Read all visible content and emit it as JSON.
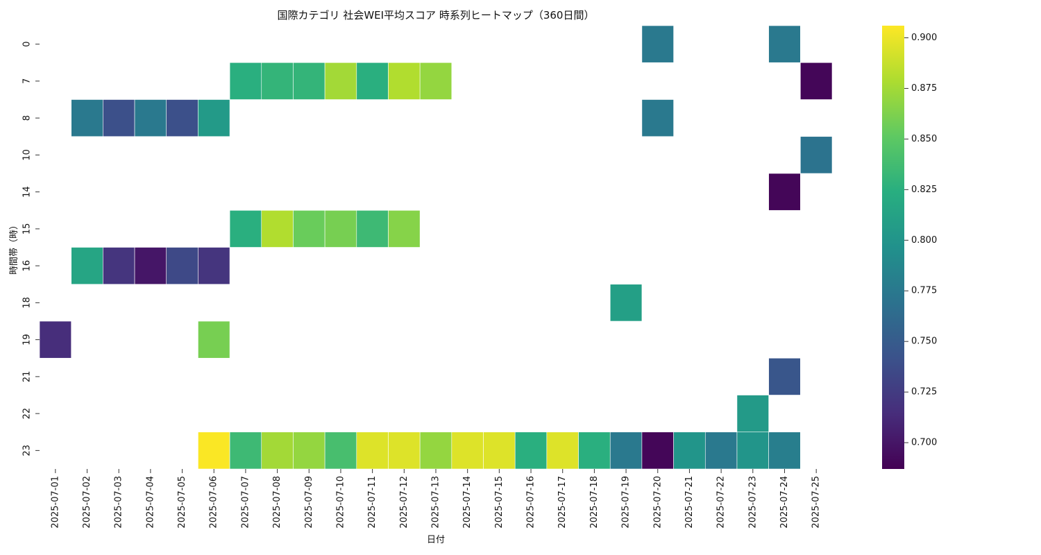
{
  "chart_data": {
    "type": "heatmap",
    "title": "国際カテゴリ 社会WEI平均スコア 時系列ヒートマップ（360日間）",
    "xlabel": "日付",
    "ylabel": "時間帯（時）",
    "x_categories": [
      "2025-07-01",
      "2025-07-02",
      "2025-07-03",
      "2025-07-04",
      "2025-07-05",
      "2025-07-06",
      "2025-07-07",
      "2025-07-08",
      "2025-07-09",
      "2025-07-10",
      "2025-07-11",
      "2025-07-12",
      "2025-07-13",
      "2025-07-14",
      "2025-07-15",
      "2025-07-16",
      "2025-07-17",
      "2025-07-18",
      "2025-07-19",
      "2025-07-20",
      "2025-07-21",
      "2025-07-22",
      "2025-07-23",
      "2025-07-24",
      "2025-07-25"
    ],
    "y_categories": [
      "0",
      "7",
      "8",
      "10",
      "14",
      "15",
      "16",
      "18",
      "19",
      "21",
      "22",
      "23"
    ],
    "values": [
      [
        null,
        null,
        null,
        null,
        null,
        null,
        null,
        null,
        null,
        null,
        null,
        null,
        null,
        null,
        null,
        null,
        null,
        null,
        null,
        0.775,
        null,
        null,
        null,
        0.775,
        null
      ],
      [
        null,
        null,
        null,
        null,
        null,
        null,
        0.825,
        0.83,
        0.83,
        0.875,
        0.825,
        0.88,
        0.87,
        null,
        null,
        null,
        null,
        null,
        null,
        null,
        null,
        null,
        null,
        null,
        0.69
      ],
      [
        null,
        0.775,
        0.74,
        0.775,
        0.74,
        0.805,
        null,
        null,
        null,
        null,
        null,
        null,
        null,
        null,
        null,
        null,
        null,
        null,
        null,
        0.775,
        null,
        null,
        null,
        null,
        null
      ],
      [
        null,
        null,
        null,
        null,
        null,
        null,
        null,
        null,
        null,
        null,
        null,
        null,
        null,
        null,
        null,
        null,
        null,
        null,
        null,
        null,
        null,
        null,
        null,
        null,
        0.77
      ],
      [
        null,
        null,
        null,
        null,
        null,
        null,
        null,
        null,
        null,
        null,
        null,
        null,
        null,
        null,
        null,
        null,
        null,
        null,
        null,
        null,
        null,
        null,
        null,
        0.69,
        null
      ],
      [
        null,
        null,
        null,
        null,
        null,
        null,
        0.825,
        0.88,
        0.855,
        0.86,
        0.835,
        0.865,
        null,
        null,
        null,
        null,
        null,
        null,
        null,
        null,
        null,
        null,
        null,
        null,
        null
      ],
      [
        null,
        0.815,
        0.72,
        0.7,
        0.735,
        0.72,
        null,
        null,
        null,
        null,
        null,
        null,
        null,
        null,
        null,
        null,
        null,
        null,
        null,
        null,
        null,
        null,
        null,
        null,
        null
      ],
      [
        null,
        null,
        null,
        null,
        null,
        null,
        null,
        null,
        null,
        null,
        null,
        null,
        null,
        null,
        null,
        null,
        null,
        null,
        0.81,
        null,
        null,
        null,
        null,
        null,
        null
      ],
      [
        0.715,
        null,
        null,
        null,
        null,
        0.86,
        null,
        null,
        null,
        null,
        null,
        null,
        null,
        null,
        null,
        null,
        null,
        null,
        null,
        null,
        null,
        null,
        null,
        null,
        null
      ],
      [
        null,
        null,
        null,
        null,
        null,
        null,
        null,
        null,
        null,
        null,
        null,
        null,
        null,
        null,
        null,
        null,
        null,
        null,
        null,
        null,
        null,
        null,
        null,
        0.745,
        null
      ],
      [
        null,
        null,
        null,
        null,
        null,
        null,
        null,
        null,
        null,
        null,
        null,
        null,
        null,
        null,
        null,
        null,
        null,
        null,
        null,
        null,
        null,
        null,
        0.805,
        null,
        null
      ],
      [
        null,
        null,
        null,
        null,
        null,
        0.905,
        0.835,
        0.875,
        0.87,
        0.84,
        0.895,
        0.895,
        0.87,
        0.895,
        0.895,
        0.825,
        0.895,
        0.825,
        0.775,
        0.69,
        0.8,
        0.775,
        0.8,
        0.78,
        null
      ]
    ],
    "colorbar": {
      "colormap": "viridis",
      "vmin": 0.687,
      "vmax": 0.906,
      "ticks": [
        "0.700",
        "0.725",
        "0.750",
        "0.775",
        "0.800",
        "0.825",
        "0.850",
        "0.875",
        "0.900"
      ]
    },
    "grid": false,
    "legend": "colorbar-right"
  }
}
